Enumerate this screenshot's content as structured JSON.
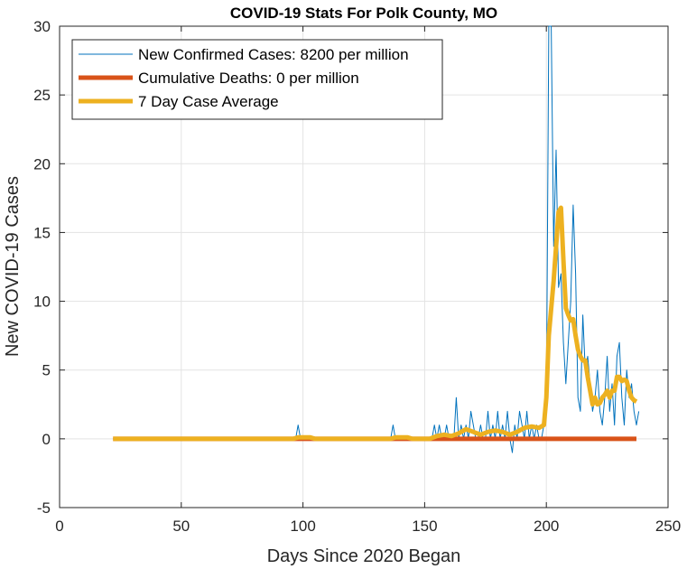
{
  "chart_data": {
    "type": "line",
    "title": "COVID-19 Stats For Polk County, MO",
    "xlabel": "Days Since 2020 Began",
    "ylabel": "New COVID-19 Cases",
    "xlim": [
      0,
      250
    ],
    "ylim": [
      -5,
      30
    ],
    "xticks": [
      0,
      50,
      100,
      150,
      200,
      250
    ],
    "yticks": [
      -5,
      0,
      5,
      10,
      15,
      20,
      25,
      30
    ],
    "grid": true,
    "legend_position": "top-left",
    "series": [
      {
        "name": "New Confirmed Cases: 8200 per million",
        "color": "#0072BD",
        "line_width": 1,
        "points": [
          [
            22,
            0
          ],
          [
            96,
            0
          ],
          [
            97,
            0
          ],
          [
            98,
            1
          ],
          [
            99,
            0
          ],
          [
            136,
            0
          ],
          [
            137,
            1
          ],
          [
            138,
            0
          ],
          [
            152,
            0
          ],
          [
            153,
            0
          ],
          [
            154,
            1
          ],
          [
            155,
            0
          ],
          [
            156,
            1
          ],
          [
            157,
            0
          ],
          [
            158,
            0
          ],
          [
            159,
            1
          ],
          [
            160,
            0
          ],
          [
            161,
            0
          ],
          [
            162,
            0
          ],
          [
            163,
            3
          ],
          [
            164,
            0
          ],
          [
            165,
            1
          ],
          [
            166,
            0
          ],
          [
            167,
            1
          ],
          [
            168,
            0
          ],
          [
            169,
            2
          ],
          [
            170,
            1
          ],
          [
            171,
            0
          ],
          [
            172,
            0
          ],
          [
            173,
            1
          ],
          [
            174,
            0
          ],
          [
            175,
            0
          ],
          [
            176,
            2
          ],
          [
            177,
            0
          ],
          [
            178,
            1
          ],
          [
            179,
            0
          ],
          [
            180,
            2
          ],
          [
            181,
            0
          ],
          [
            182,
            1
          ],
          [
            183,
            0
          ],
          [
            184,
            2
          ],
          [
            185,
            0
          ],
          [
            186,
            -1
          ],
          [
            187,
            1
          ],
          [
            188,
            0
          ],
          [
            189,
            2
          ],
          [
            190,
            1
          ],
          [
            191,
            0
          ],
          [
            192,
            2
          ],
          [
            193,
            0
          ],
          [
            194,
            1
          ],
          [
            195,
            0
          ],
          [
            196,
            1
          ],
          [
            197,
            0
          ],
          [
            198,
            0
          ],
          [
            199,
            1
          ],
          [
            200,
            2
          ],
          [
            201,
            30
          ],
          [
            202,
            30
          ],
          [
            203,
            14
          ],
          [
            204,
            21
          ],
          [
            205,
            11
          ],
          [
            206,
            12
          ],
          [
            207,
            7
          ],
          [
            208,
            4
          ],
          [
            209,
            7
          ],
          [
            210,
            10
          ],
          [
            211,
            17
          ],
          [
            212,
            12
          ],
          [
            213,
            3
          ],
          [
            214,
            2
          ],
          [
            215,
            9
          ],
          [
            216,
            5
          ],
          [
            217,
            6
          ],
          [
            218,
            4
          ],
          [
            219,
            2
          ],
          [
            220,
            3
          ],
          [
            221,
            5
          ],
          [
            222,
            2
          ],
          [
            223,
            1
          ],
          [
            224,
            3
          ],
          [
            225,
            6
          ],
          [
            226,
            2
          ],
          [
            227,
            4
          ],
          [
            228,
            1
          ],
          [
            229,
            6
          ],
          [
            230,
            7
          ],
          [
            231,
            3
          ],
          [
            232,
            1
          ],
          [
            233,
            5
          ],
          [
            234,
            3
          ],
          [
            235,
            4
          ],
          [
            236,
            2
          ],
          [
            237,
            1
          ],
          [
            238,
            2
          ]
        ]
      },
      {
        "name": "Cumulative Deaths: 0 per million",
        "color": "#D95319",
        "line_width": 5,
        "points": [
          [
            22,
            0
          ],
          [
            237,
            0
          ]
        ]
      },
      {
        "name": "7 Day Case Average",
        "color": "#EDB120",
        "line_width": 5,
        "points": [
          [
            22,
            0
          ],
          [
            96,
            0
          ],
          [
            98,
            0.1
          ],
          [
            103,
            0.1
          ],
          [
            105,
            0
          ],
          [
            136,
            0
          ],
          [
            138,
            0.1
          ],
          [
            143,
            0.1
          ],
          [
            145,
            0
          ],
          [
            152,
            0
          ],
          [
            155,
            0.2
          ],
          [
            158,
            0.3
          ],
          [
            161,
            0.2
          ],
          [
            164,
            0.4
          ],
          [
            167,
            0.7
          ],
          [
            170,
            0.5
          ],
          [
            173,
            0.3
          ],
          [
            176,
            0.5
          ],
          [
            179,
            0.6
          ],
          [
            182,
            0.5
          ],
          [
            185,
            0.3
          ],
          [
            188,
            0.5
          ],
          [
            191,
            0.8
          ],
          [
            194,
            0.9
          ],
          [
            197,
            0.8
          ],
          [
            199,
            1
          ],
          [
            200,
            3
          ],
          [
            201,
            7.5
          ],
          [
            202,
            9.5
          ],
          [
            203,
            11.5
          ],
          [
            204,
            14
          ],
          [
            205,
            16.5
          ],
          [
            206,
            16.8
          ],
          [
            207,
            13
          ],
          [
            208,
            9.5
          ],
          [
            209,
            9
          ],
          [
            210,
            8.6
          ],
          [
            211,
            8.7
          ],
          [
            212,
            7.5
          ],
          [
            213,
            6.5
          ],
          [
            214,
            6
          ],
          [
            215,
            5.7
          ],
          [
            216,
            5.7
          ],
          [
            217,
            4.5
          ],
          [
            218,
            3.5
          ],
          [
            219,
            2.5
          ],
          [
            220,
            3
          ],
          [
            221,
            2.5
          ],
          [
            222,
            2.6
          ],
          [
            223,
            3
          ],
          [
            224,
            3.2
          ],
          [
            225,
            3.5
          ],
          [
            226,
            3
          ],
          [
            227,
            3.5
          ],
          [
            228,
            3.5
          ],
          [
            229,
            4.5
          ],
          [
            230,
            4.5
          ],
          [
            231,
            4.2
          ],
          [
            232,
            4.3
          ],
          [
            233,
            4.2
          ],
          [
            234,
            3.5
          ],
          [
            235,
            3
          ],
          [
            236,
            2.8
          ],
          [
            237,
            2.7
          ]
        ]
      }
    ]
  }
}
